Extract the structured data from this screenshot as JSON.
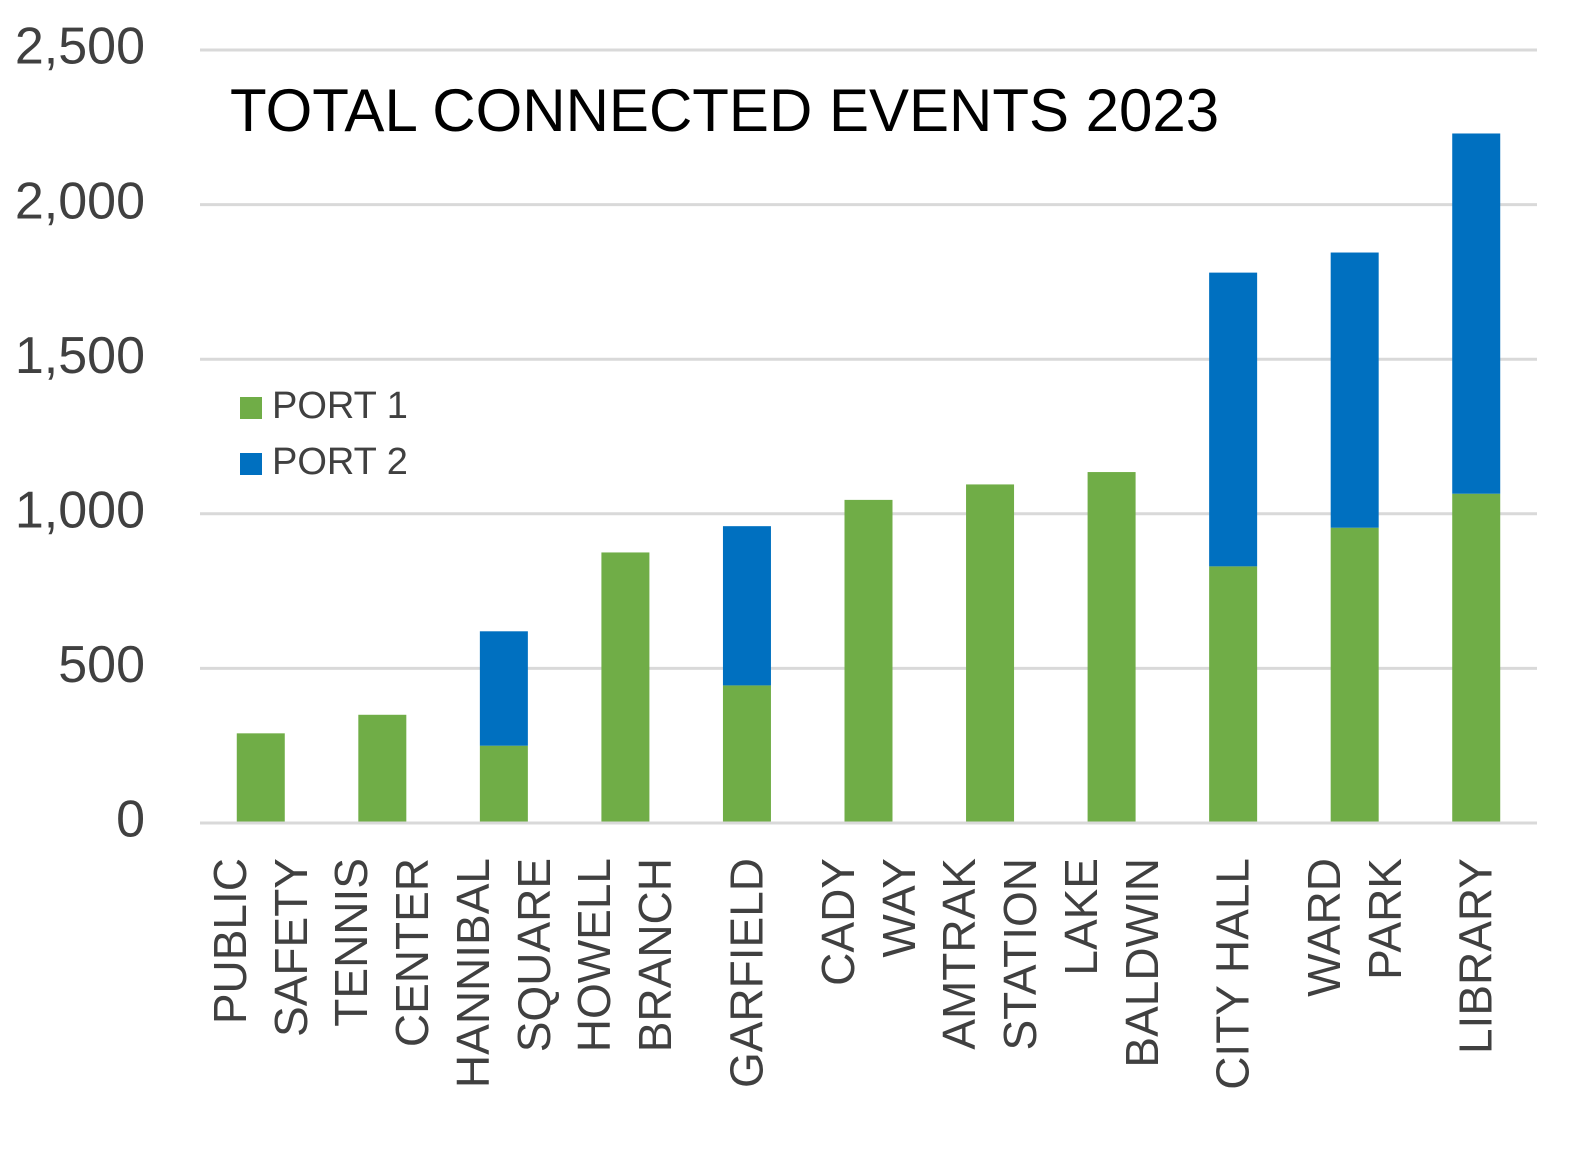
{
  "chart_data": {
    "type": "stacked_bar",
    "title": "TOTAL CONNECTED EVENTS 2023",
    "categories": [
      "PUBLIC\nSAFETY",
      "TENNIS\nCENTER",
      "HANNIBAL\nSQUARE",
      "HOWELL\nBRANCH",
      "GARFIELD",
      "CADY\nWAY",
      "AMTRAK\nSTATION",
      "LAKE\nBALDWIN",
      "CITY HALL",
      "WARD\nPARK",
      "LIBRARY"
    ],
    "series": [
      {
        "name": "PORT 1",
        "color": "#70ad47",
        "values": [
          290,
          350,
          250,
          875,
          445,
          1045,
          1095,
          1135,
          830,
          955,
          1065
        ]
      },
      {
        "name": "PORT 2",
        "color": "#0070c0",
        "values": [
          null,
          null,
          370,
          null,
          515,
          null,
          null,
          null,
          950,
          890,
          1165
        ]
      }
    ],
    "ylim": [
      0,
      2500
    ],
    "yticks": [
      0,
      500,
      {
        "value": 1000,
        "label": "1,000"
      },
      {
        "value": 1500,
        "label": "1,500"
      },
      {
        "value": 2000,
        "label": "2,000"
      },
      {
        "value": 2500,
        "label": "2,500"
      }
    ],
    "grid": true,
    "legend": "left"
  }
}
